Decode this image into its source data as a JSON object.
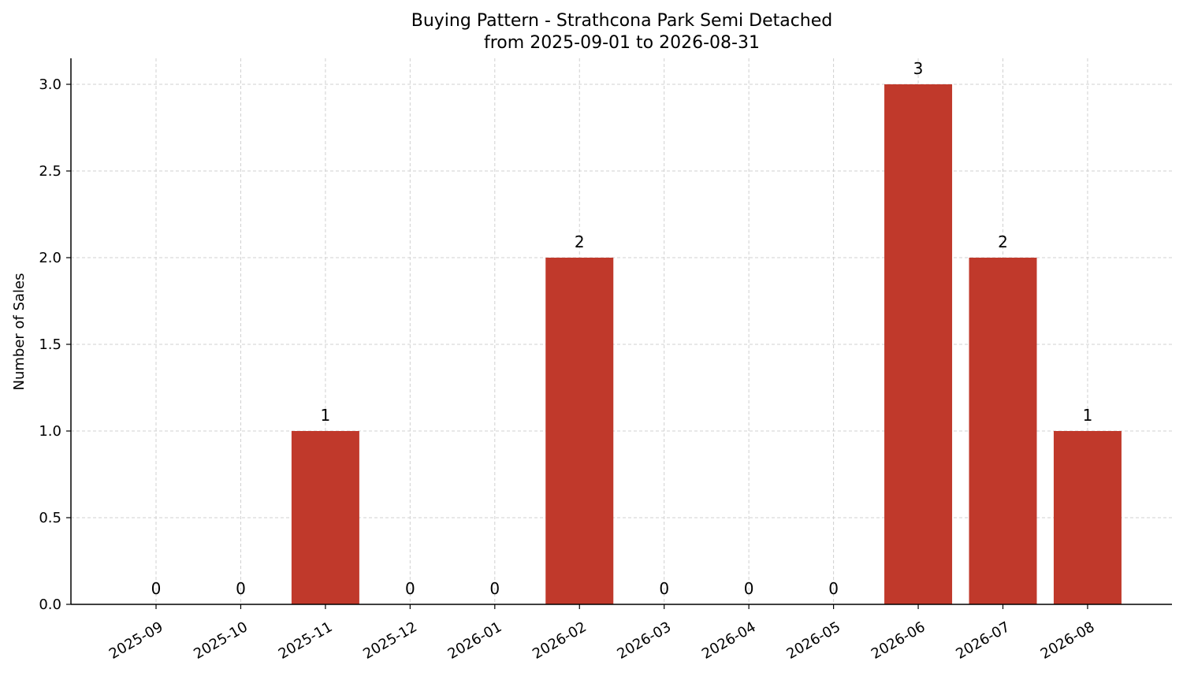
{
  "chart_data": {
    "type": "bar",
    "title": "Buying Pattern - Strathcona Park Semi Detached",
    "subtitle": "from 2025-09-01 to 2026-08-31",
    "xlabel": "",
    "ylabel": "Number of Sales",
    "categories": [
      "2025-09",
      "2025-10",
      "2025-11",
      "2025-12",
      "2026-01",
      "2026-02",
      "2026-03",
      "2026-04",
      "2026-05",
      "2026-06",
      "2026-07",
      "2026-08"
    ],
    "values": [
      0,
      0,
      1,
      0,
      0,
      2,
      0,
      0,
      0,
      3,
      2,
      1
    ],
    "data_labels": [
      "0",
      "0",
      "1",
      "0",
      "0",
      "2",
      "0",
      "0",
      "0",
      "3",
      "2",
      "1"
    ],
    "yticks": [
      "0.0",
      "0.5",
      "1.0",
      "1.5",
      "2.0",
      "2.5",
      "3.0"
    ],
    "ylim": [
      0,
      3.15
    ],
    "grid": true,
    "bar_color": "#c0392b"
  }
}
